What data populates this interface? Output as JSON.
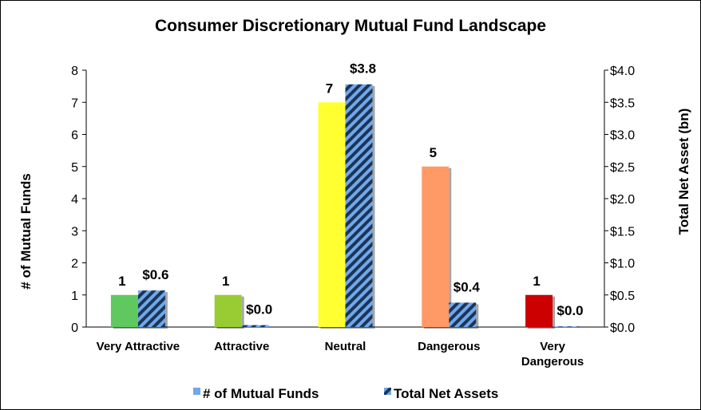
{
  "chart_data": {
    "type": "bar",
    "title": "Consumer Discretionary Mutual Fund Landscape",
    "categories": [
      [
        "Very Attractive"
      ],
      [
        "Attractive"
      ],
      [
        "Neutral"
      ],
      [
        "Dangerous"
      ],
      [
        "Very",
        "Dangerous"
      ]
    ],
    "category_colors": [
      "#5fc95f",
      "#99cc33",
      "#ffff33",
      "#ff9966",
      "#cc0000"
    ],
    "ylabel_left": "# of Mutual Funds",
    "ylabel_right": "Total Net Asset (bn)",
    "ylim_left": [
      0,
      8
    ],
    "ylim_right": [
      0,
      4.0
    ],
    "yticks_left": [
      "0",
      "1",
      "2",
      "3",
      "4",
      "5",
      "6",
      "7",
      "8"
    ],
    "yticks_right": [
      "$0.0",
      "$0.5",
      "$1.0",
      "$1.5",
      "$2.0",
      "$2.5",
      "$3.0",
      "$3.5",
      "$4.0"
    ],
    "series": [
      {
        "name": "# of Mutual Funds",
        "axis": "left",
        "values": [
          1,
          1,
          7,
          5,
          1
        ],
        "labels": [
          "1",
          "1",
          "7",
          "5",
          "1"
        ],
        "legend_color": "#6fa8ec"
      },
      {
        "name": "Total Net Assets",
        "axis": "right",
        "values": [
          0.57,
          0.03,
          3.78,
          0.38,
          0.01
        ],
        "labels": [
          "$0.6",
          "$0.0",
          "$3.8",
          "$0.4",
          "$0.0"
        ],
        "pattern_colors": [
          "#6fa8ec",
          "#1f3555"
        ]
      }
    ],
    "legend_position": "bottom",
    "grid": false
  }
}
